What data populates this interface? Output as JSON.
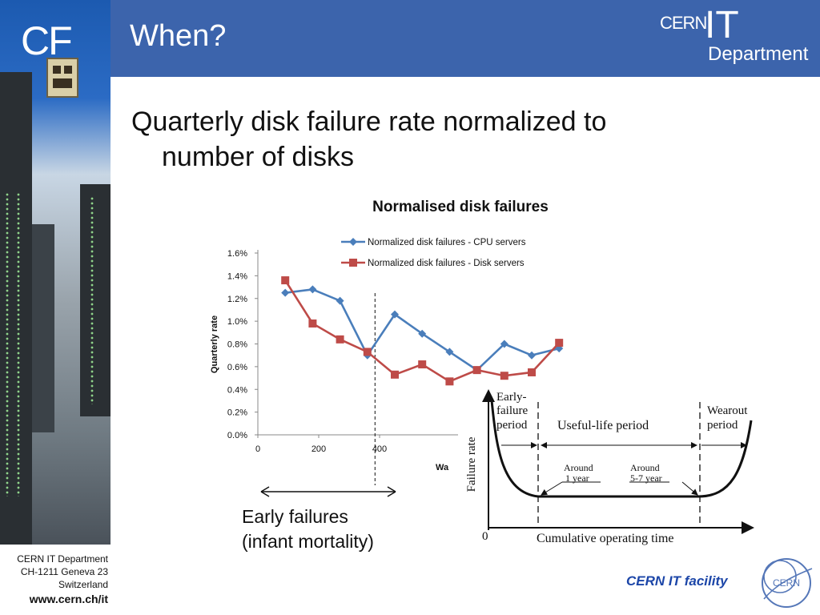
{
  "sidebar": {
    "logo_text": "CF"
  },
  "header": {
    "title": "When?",
    "brand": {
      "line1": "CERN",
      "line2": "IT",
      "line3": "Department"
    }
  },
  "content": {
    "bullet_line1": "Quarterly disk failure rate normalized to",
    "bullet_line2": "number of disks"
  },
  "chart_data": {
    "type": "line",
    "title": "Normalised disk failures",
    "ylabel": "Quarterly rate",
    "xlabel_partial": "Wa",
    "xlim": [
      0,
      1000
    ],
    "ylim": [
      0,
      1.6
    ],
    "x_ticks": [
      "0",
      "200",
      "400"
    ],
    "y_ticks": [
      "0.0%",
      "0.2%",
      "0.4%",
      "0.6%",
      "0.8%",
      "1.0%",
      "1.2%",
      "1.4%",
      "1.6%"
    ],
    "legend_position": "top",
    "reference_line_x": 385,
    "series": [
      {
        "name": "Normalized disk failures - CPU servers",
        "color": "#4a7ebb",
        "marker": "diamond",
        "x": [
          90,
          180,
          270,
          360,
          450,
          540,
          630,
          720,
          810,
          900,
          990
        ],
        "y": [
          1.25,
          1.28,
          1.18,
          0.7,
          1.06,
          0.89,
          0.73,
          0.57,
          0.8,
          0.7,
          0.76
        ]
      },
      {
        "name": "Normalized disk failures - Disk servers",
        "color": "#be4b48",
        "marker": "square",
        "x": [
          90,
          180,
          270,
          360,
          450,
          540,
          630,
          720,
          810,
          900,
          990
        ],
        "y": [
          1.36,
          0.98,
          0.84,
          0.73,
          0.53,
          0.62,
          0.47,
          0.57,
          0.52,
          0.55,
          0.81
        ]
      }
    ]
  },
  "bathtub": {
    "ylabel": "Failure rate",
    "xlabel": "Cumulative operating time",
    "origin": "0",
    "early_l1": "Early-",
    "early_l2": "failure",
    "early_l3": "period",
    "useful": "Useful-life period",
    "wear_l1": "Wearout",
    "wear_l2": "period",
    "around1_l1": "Around",
    "around1_l2": "1 year",
    "around2_l1": "Around",
    "around2_l2": "5-7 year"
  },
  "annotation": {
    "line1": "Early failures",
    "line2": "(infant mortality)"
  },
  "footer": {
    "dept": "CERN IT Department",
    "address": "CH-1211 Geneva 23",
    "country": "Switzerland",
    "url": "www.cern.ch/it",
    "facility": "CERN IT facility",
    "logo_text": "CERN"
  }
}
